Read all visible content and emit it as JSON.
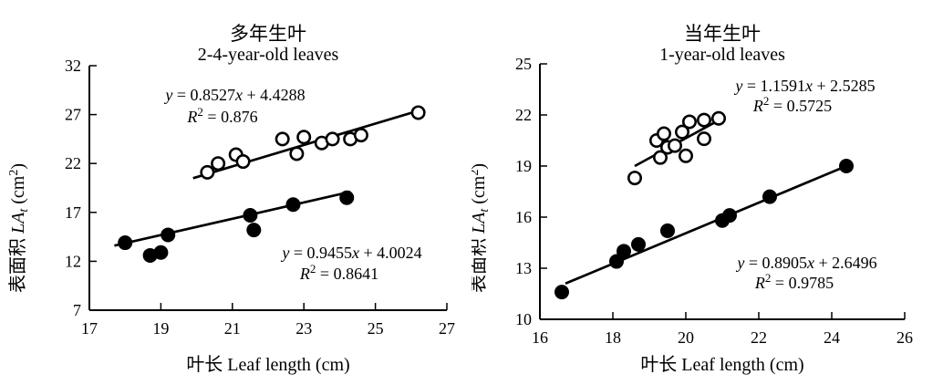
{
  "figure": {
    "background": "#ffffff",
    "ink_color": "#000000"
  },
  "chart_data": [
    {
      "type": "scatter",
      "title": "多年生叶",
      "subtitle": "2-4-year-old leaves",
      "xlabel": "叶长 Leaf length (cm)",
      "ylabel_text": "表面积 LAt (cm2)",
      "ylabel_parts": [
        [
          "n",
          "表面积 "
        ],
        [
          "i",
          "LA"
        ],
        [
          "sub",
          "t"
        ],
        [
          "n",
          " (cm"
        ],
        [
          "sup",
          "2"
        ],
        [
          "n",
          ")"
        ]
      ],
      "xlim": [
        17,
        27
      ],
      "ylim": [
        7,
        32
      ],
      "xticks": [
        17,
        19,
        21,
        23,
        25,
        27
      ],
      "yticks": [
        7,
        12,
        17,
        22,
        27,
        32
      ],
      "grid": false,
      "legend": "none",
      "series": [
        {
          "name": "2-4-year-old leaves upper group",
          "marker": "open",
          "color": "#000000",
          "points": [
            [
              20.3,
              21.1
            ],
            [
              20.6,
              22.0
            ],
            [
              21.1,
              22.9
            ],
            [
              21.3,
              22.2
            ],
            [
              22.4,
              24.5
            ],
            [
              22.8,
              23.0
            ],
            [
              23.0,
              24.7
            ],
            [
              23.5,
              24.1
            ],
            [
              23.8,
              24.5
            ],
            [
              24.3,
              24.5
            ],
            [
              24.6,
              24.9
            ],
            [
              26.2,
              27.2
            ]
          ],
          "trendline": [
            [
              19.9,
              20.5
            ],
            [
              26.3,
              27.5
            ]
          ],
          "equation_text": "y = 0.8527x + 4.4288",
          "r2_text": "R² = 0.876",
          "equation_parts": [
            [
              "i",
              "y"
            ],
            [
              "n",
              " = 0.8527"
            ],
            [
              "i",
              "x"
            ],
            [
              "n",
              " + 4.4288"
            ]
          ],
          "r2_parts": [
            [
              "i",
              "R"
            ],
            [
              "sup",
              "2"
            ],
            [
              "n",
              " = 0.876"
            ]
          ]
        },
        {
          "name": "2-4-year-old leaves lower group",
          "marker": "filled",
          "color": "#000000",
          "points": [
            [
              18.0,
              13.9
            ],
            [
              18.7,
              12.6
            ],
            [
              19.0,
              12.9
            ],
            [
              19.2,
              14.7
            ],
            [
              21.5,
              16.7
            ],
            [
              21.6,
              15.2
            ],
            [
              22.7,
              17.8
            ],
            [
              24.2,
              18.5
            ]
          ],
          "trendline": [
            [
              17.7,
              13.6
            ],
            [
              24.3,
              19.1
            ]
          ],
          "equation_text": "y = 0.9455x + 4.0024",
          "r2_text": "R² = 0.8641",
          "equation_parts": [
            [
              "i",
              "y"
            ],
            [
              "n",
              " = 0.9455"
            ],
            [
              "i",
              "x"
            ],
            [
              "n",
              " + 4.0024"
            ]
          ],
          "r2_parts": [
            [
              "i",
              "R"
            ],
            [
              "sup",
              "2"
            ],
            [
              "n",
              " = 0.8641"
            ]
          ]
        }
      ]
    },
    {
      "type": "scatter",
      "title": "当年生叶",
      "subtitle": "1-year-old leaves",
      "xlabel": "叶长 Leaf length (cm)",
      "ylabel_text": "表面积 LAt (cm2)",
      "ylabel_parts": [
        [
          "n",
          "表面积 "
        ],
        [
          "i",
          "LA"
        ],
        [
          "sub",
          "t"
        ],
        [
          "n",
          " (cm"
        ],
        [
          "sup",
          "2"
        ],
        [
          "n",
          ")"
        ]
      ],
      "xlim": [
        16,
        26
      ],
      "ylim": [
        10,
        25
      ],
      "xticks": [
        16,
        18,
        20,
        22,
        24,
        26
      ],
      "yticks": [
        10,
        13,
        16,
        19,
        22,
        25
      ],
      "grid": false,
      "legend": "none",
      "series": [
        {
          "name": "1-year-old leaves upper group",
          "marker": "open",
          "color": "#000000",
          "points": [
            [
              18.6,
              18.3
            ],
            [
              19.2,
              20.5
            ],
            [
              19.3,
              19.5
            ],
            [
              19.4,
              20.9
            ],
            [
              19.5,
              20.1
            ],
            [
              19.7,
              20.2
            ],
            [
              19.9,
              21.0
            ],
            [
              20.0,
              19.6
            ],
            [
              20.1,
              21.6
            ],
            [
              20.5,
              21.7
            ],
            [
              20.5,
              20.6
            ],
            [
              20.9,
              21.8
            ]
          ],
          "trendline": [
            [
              18.6,
              19.0
            ],
            [
              21.0,
              21.8
            ]
          ],
          "equation_text": "y = 1.1591x + 2.5285",
          "r2_text": "R² = 0.5725",
          "equation_parts": [
            [
              "i",
              "y"
            ],
            [
              "n",
              " = 1.1591"
            ],
            [
              "i",
              "x"
            ],
            [
              "n",
              " + 2.5285"
            ]
          ],
          "r2_parts": [
            [
              "i",
              "R"
            ],
            [
              "sup",
              "2"
            ],
            [
              "n",
              " = 0.5725"
            ]
          ]
        },
        {
          "name": "1-year-old leaves lower group",
          "marker": "filled",
          "color": "#000000",
          "points": [
            [
              16.6,
              11.6
            ],
            [
              18.1,
              13.4
            ],
            [
              18.3,
              14.0
            ],
            [
              18.7,
              14.4
            ],
            [
              19.5,
              15.2
            ],
            [
              21.0,
              15.8
            ],
            [
              21.2,
              16.1
            ],
            [
              22.3,
              17.2
            ],
            [
              24.4,
              19.0
            ]
          ],
          "trendline": [
            [
              16.7,
              12.1
            ],
            [
              24.4,
              19.0
            ]
          ],
          "equation_text": "y = 0.8905x + 2.6496",
          "r2_text": "R² = 0.9785",
          "equation_parts": [
            [
              "i",
              "y"
            ],
            [
              "n",
              " = 0.8905"
            ],
            [
              "i",
              "x"
            ],
            [
              "n",
              " + 2.6496"
            ]
          ],
          "r2_parts": [
            [
              "i",
              "R"
            ],
            [
              "sup",
              "2"
            ],
            [
              "n",
              " = 0.9785"
            ]
          ]
        }
      ]
    }
  ]
}
